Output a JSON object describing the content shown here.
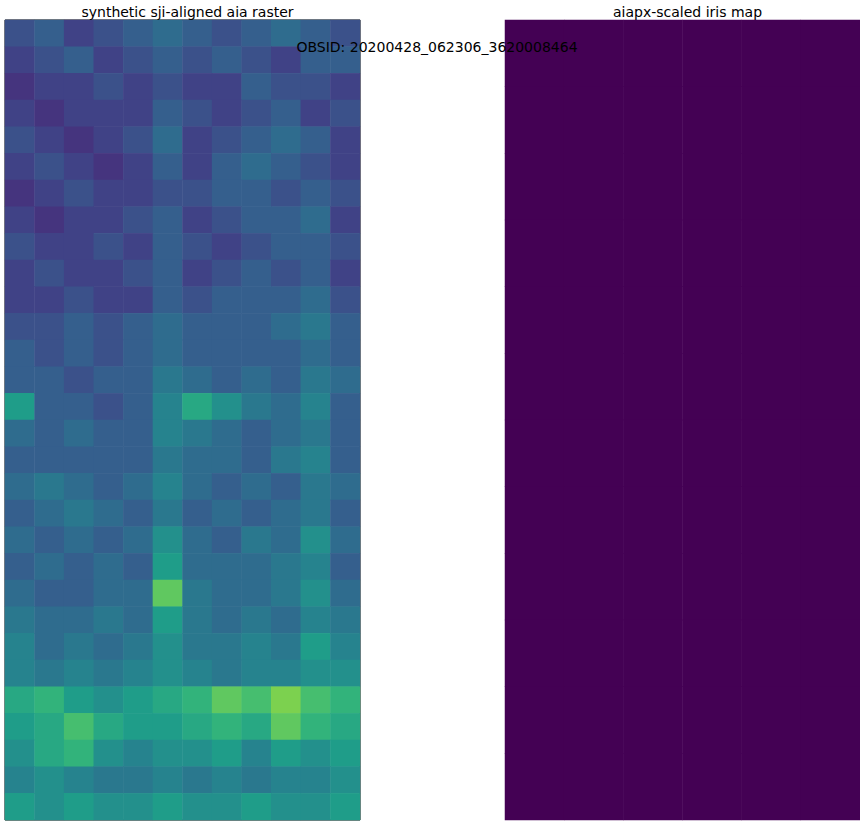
{
  "suptitle": "OBSID: 20200428_062306_3620008464",
  "chart_data": [
    {
      "type": "heatmap",
      "title": "synthetic sji-aligned aia raster",
      "tick_labels": false,
      "frame": true,
      "color_range": [
        0,
        1
      ],
      "values": [
        [
          0.25,
          0.3,
          0.2,
          0.25,
          0.3,
          0.35,
          0.3,
          0.25,
          0.3,
          0.35,
          0.3,
          0.25
        ],
        [
          0.2,
          0.25,
          0.3,
          0.2,
          0.25,
          0.3,
          0.25,
          0.3,
          0.25,
          0.2,
          0.3,
          0.3
        ],
        [
          0.15,
          0.2,
          0.2,
          0.25,
          0.2,
          0.25,
          0.2,
          0.2,
          0.3,
          0.25,
          0.25,
          0.2
        ],
        [
          0.2,
          0.15,
          0.2,
          0.2,
          0.2,
          0.3,
          0.25,
          0.2,
          0.25,
          0.3,
          0.2,
          0.25
        ],
        [
          0.25,
          0.2,
          0.15,
          0.2,
          0.25,
          0.35,
          0.2,
          0.25,
          0.3,
          0.35,
          0.3,
          0.2
        ],
        [
          0.2,
          0.25,
          0.2,
          0.15,
          0.2,
          0.3,
          0.2,
          0.3,
          0.35,
          0.3,
          0.25,
          0.2
        ],
        [
          0.15,
          0.2,
          0.25,
          0.2,
          0.2,
          0.25,
          0.25,
          0.3,
          0.3,
          0.25,
          0.3,
          0.25
        ],
        [
          0.2,
          0.15,
          0.2,
          0.2,
          0.25,
          0.3,
          0.2,
          0.25,
          0.3,
          0.3,
          0.35,
          0.2
        ],
        [
          0.25,
          0.2,
          0.2,
          0.25,
          0.2,
          0.3,
          0.25,
          0.2,
          0.25,
          0.3,
          0.3,
          0.25
        ],
        [
          0.2,
          0.25,
          0.2,
          0.2,
          0.25,
          0.3,
          0.2,
          0.25,
          0.3,
          0.25,
          0.3,
          0.2
        ],
        [
          0.2,
          0.2,
          0.25,
          0.2,
          0.2,
          0.3,
          0.25,
          0.3,
          0.3,
          0.3,
          0.35,
          0.25
        ],
        [
          0.25,
          0.25,
          0.3,
          0.25,
          0.3,
          0.35,
          0.3,
          0.3,
          0.3,
          0.35,
          0.4,
          0.3
        ],
        [
          0.3,
          0.25,
          0.3,
          0.25,
          0.3,
          0.35,
          0.3,
          0.3,
          0.3,
          0.3,
          0.35,
          0.3
        ],
        [
          0.3,
          0.3,
          0.25,
          0.3,
          0.3,
          0.4,
          0.35,
          0.3,
          0.35,
          0.3,
          0.4,
          0.35
        ],
        [
          0.55,
          0.3,
          0.3,
          0.25,
          0.3,
          0.45,
          0.6,
          0.5,
          0.4,
          0.35,
          0.45,
          0.3
        ],
        [
          0.35,
          0.3,
          0.35,
          0.3,
          0.3,
          0.45,
          0.4,
          0.35,
          0.3,
          0.35,
          0.4,
          0.3
        ],
        [
          0.3,
          0.3,
          0.3,
          0.3,
          0.3,
          0.4,
          0.35,
          0.35,
          0.3,
          0.4,
          0.45,
          0.3
        ],
        [
          0.35,
          0.4,
          0.35,
          0.3,
          0.35,
          0.45,
          0.35,
          0.3,
          0.35,
          0.3,
          0.4,
          0.35
        ],
        [
          0.3,
          0.35,
          0.4,
          0.35,
          0.3,
          0.4,
          0.3,
          0.35,
          0.3,
          0.35,
          0.4,
          0.3
        ],
        [
          0.35,
          0.3,
          0.35,
          0.3,
          0.35,
          0.5,
          0.35,
          0.3,
          0.4,
          0.35,
          0.5,
          0.35
        ],
        [
          0.3,
          0.35,
          0.3,
          0.35,
          0.3,
          0.55,
          0.35,
          0.35,
          0.35,
          0.4,
          0.45,
          0.3
        ],
        [
          0.35,
          0.3,
          0.3,
          0.35,
          0.35,
          0.75,
          0.4,
          0.35,
          0.35,
          0.4,
          0.5,
          0.35
        ],
        [
          0.4,
          0.35,
          0.35,
          0.4,
          0.35,
          0.55,
          0.4,
          0.35,
          0.4,
          0.35,
          0.45,
          0.4
        ],
        [
          0.45,
          0.35,
          0.4,
          0.35,
          0.4,
          0.5,
          0.4,
          0.4,
          0.45,
          0.4,
          0.55,
          0.45
        ],
        [
          0.45,
          0.4,
          0.45,
          0.4,
          0.45,
          0.5,
          0.45,
          0.4,
          0.45,
          0.45,
          0.5,
          0.5
        ],
        [
          0.6,
          0.65,
          0.55,
          0.5,
          0.55,
          0.6,
          0.65,
          0.75,
          0.7,
          0.8,
          0.7,
          0.65
        ],
        [
          0.55,
          0.6,
          0.7,
          0.6,
          0.55,
          0.55,
          0.6,
          0.65,
          0.6,
          0.75,
          0.65,
          0.6
        ],
        [
          0.5,
          0.6,
          0.65,
          0.5,
          0.45,
          0.5,
          0.5,
          0.55,
          0.45,
          0.55,
          0.5,
          0.55
        ],
        [
          0.45,
          0.5,
          0.45,
          0.4,
          0.4,
          0.45,
          0.4,
          0.45,
          0.4,
          0.45,
          0.45,
          0.5
        ],
        [
          0.55,
          0.5,
          0.55,
          0.5,
          0.5,
          0.55,
          0.5,
          0.5,
          0.55,
          0.5,
          0.5,
          0.55
        ]
      ]
    },
    {
      "type": "heatmap",
      "title": "aiapx-scaled iris map",
      "tick_labels": false,
      "frame": false,
      "color_range": [
        0,
        1
      ],
      "values": [
        [
          0,
          0,
          0,
          0,
          0,
          0
        ],
        [
          0,
          0,
          0,
          0,
          0,
          0
        ],
        [
          0,
          0,
          0,
          0,
          0,
          0
        ],
        [
          0,
          0,
          0,
          0,
          0,
          0
        ],
        [
          0,
          0,
          0,
          0,
          0,
          0
        ],
        [
          0,
          0,
          0,
          0,
          0,
          0
        ],
        [
          0,
          0,
          0,
          0,
          0,
          0
        ],
        [
          0,
          0,
          0,
          0,
          0,
          0
        ],
        [
          0,
          0,
          0,
          0,
          0,
          0
        ],
        [
          0,
          0,
          0,
          0,
          0,
          0
        ],
        [
          0,
          0,
          0,
          0,
          0,
          0
        ],
        [
          0,
          0,
          0,
          0,
          0,
          0
        ]
      ]
    }
  ]
}
